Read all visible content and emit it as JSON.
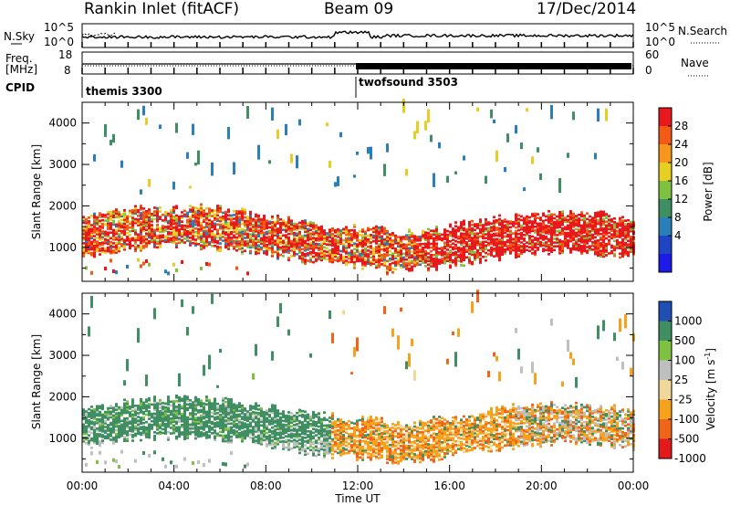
{
  "header": {
    "title": "Rankin Inlet (fitACF)",
    "beam": "Beam 09",
    "date": "17/Dec/2014"
  },
  "top_panel": {
    "left_label": "N.Sky",
    "right_label": "N.Search",
    "left_ticks": [
      "10^5",
      "10^0"
    ],
    "right_ticks": [
      "10^5",
      "10^0"
    ]
  },
  "freq_panel": {
    "left_label_1": "Freq.",
    "left_label_2": "[MHz]",
    "left_ticks": [
      "18",
      "8"
    ],
    "right_label": "Nave",
    "right_ticks": [
      "60",
      "0"
    ]
  },
  "cpid": {
    "label": "CPID",
    "segments": [
      "themis 3300",
      "twofsound 3503"
    ]
  },
  "chart_data": [
    {
      "type": "heatmap",
      "title": "",
      "xlabel": "",
      "ylabel": "Slant Range [km]",
      "x_ticks": [
        "00:00",
        "04:00",
        "08:00",
        "12:00",
        "16:00",
        "20:00",
        "00:00"
      ],
      "y_ticks": [
        1000,
        2000,
        3000,
        4000
      ],
      "ylim": [
        180,
        4500
      ],
      "colorbar": {
        "label": "Power [dB]",
        "ticks": [
          "28",
          "24",
          "20",
          "16",
          "12",
          "8",
          "4"
        ],
        "colors": [
          "#e8181d",
          "#f35a16",
          "#f7961c",
          "#e6cf22",
          "#7fc242",
          "#3f8f62",
          "#2a7fb8",
          "#1f45c4",
          "#1c1ae6"
        ]
      }
    },
    {
      "type": "heatmap",
      "title": "",
      "xlabel": "Time UT",
      "ylabel": "Slant Range [km]",
      "x_ticks": [
        "00:00",
        "04:00",
        "08:00",
        "12:00",
        "16:00",
        "20:00",
        "00:00"
      ],
      "y_ticks": [
        1000,
        2000,
        3000,
        4000
      ],
      "ylim": [
        180,
        4500
      ],
      "colorbar": {
        "label_prefix": "Velocity [m s",
        "label_sup": "-1",
        "label_suffix": "]",
        "ticks": [
          "1000",
          "500",
          "100",
          "25",
          "-25",
          "-100",
          "-500",
          "-1000"
        ],
        "colors": [
          "#1f4fb3",
          "#3f8f62",
          "#7fc242",
          "#bfbfbf",
          "#f2d79a",
          "#f7a21c",
          "#f0651a",
          "#e31a1c"
        ]
      }
    }
  ]
}
